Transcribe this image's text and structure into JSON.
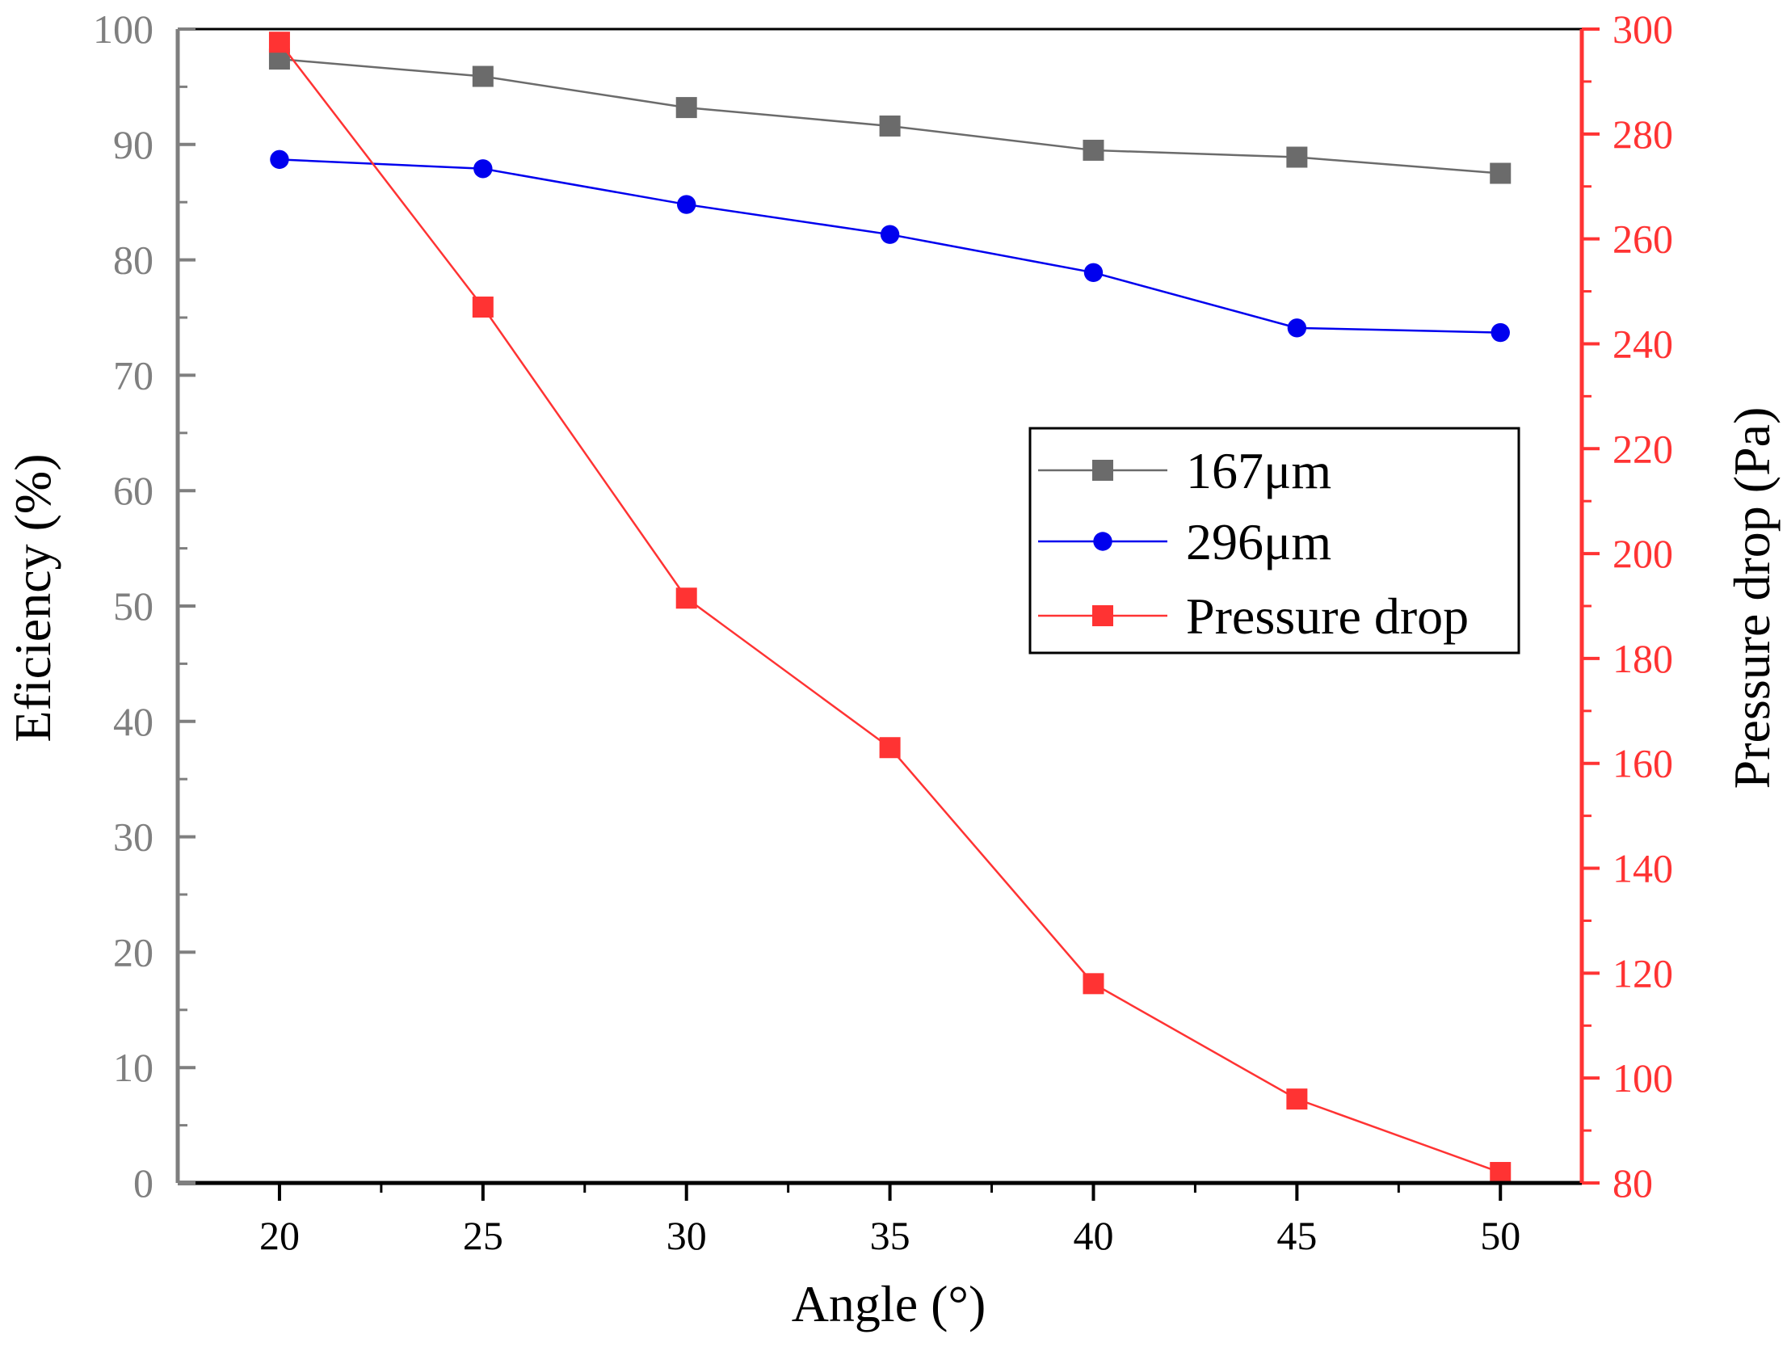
{
  "chart_data": {
    "type": "line",
    "title": "",
    "xlabel": "Angle (°)",
    "ylabel_left": "Eficiency (%)",
    "ylabel_right": "Pressure drop (Pa)",
    "x": [
      20,
      25,
      30,
      35,
      40,
      45,
      50
    ],
    "xlim": [
      17.5,
      52
    ],
    "xticks": [
      20,
      25,
      30,
      35,
      40,
      45,
      50
    ],
    "ylim_left": [
      0,
      100
    ],
    "yticks_left": [
      0,
      10,
      20,
      30,
      40,
      50,
      60,
      70,
      80,
      90,
      100
    ],
    "ylim_right": [
      80,
      300
    ],
    "yticks_right": [
      80,
      100,
      120,
      140,
      160,
      180,
      200,
      220,
      240,
      260,
      280,
      300
    ],
    "series": [
      {
        "name": "167μm",
        "axis": "left",
        "marker": "square",
        "color": "#6b6b6b",
        "values": [
          97.4,
          95.9,
          93.2,
          91.6,
          89.5,
          88.9,
          87.5
        ]
      },
      {
        "name": "296μm",
        "axis": "left",
        "marker": "circle",
        "color": "#0000ee",
        "values": [
          88.7,
          87.9,
          84.8,
          82.2,
          78.9,
          74.1,
          73.7
        ]
      },
      {
        "name": "Pressure drop",
        "axis": "right",
        "marker": "square",
        "color": "#ff3333",
        "values": [
          297.5,
          247,
          191.5,
          163,
          118,
          96,
          82
        ]
      }
    ],
    "legend": {
      "position": "center-right",
      "entries": [
        "167μm",
        "296μm",
        "Pressure drop"
      ]
    },
    "grid": false,
    "colors": {
      "left_axis": "#7f7f7f",
      "right_axis": "#ff3333",
      "bottom_axis": "#000000"
    }
  }
}
